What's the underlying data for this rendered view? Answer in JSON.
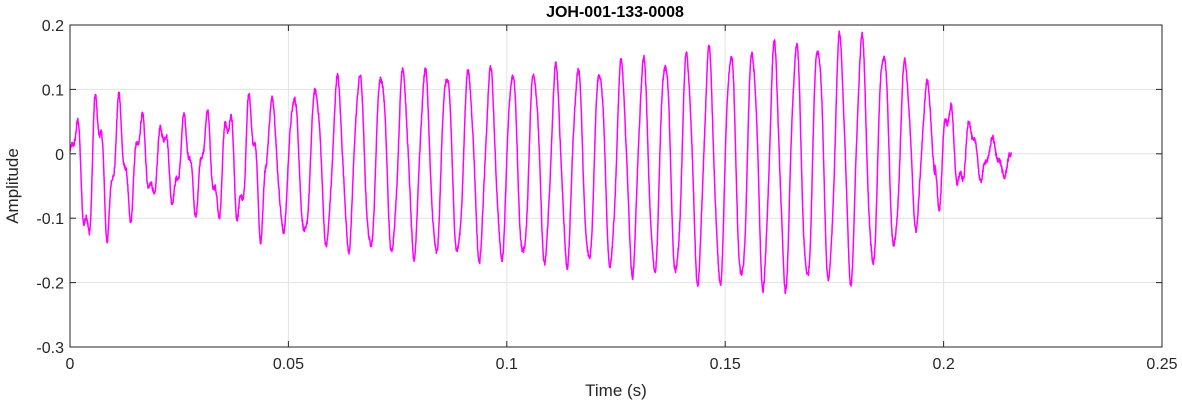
{
  "chart_data": {
    "type": "line",
    "title": "JOH-001-133-0008",
    "xlabel": "Time (s)",
    "ylabel": "Amplitude",
    "xlim": [
      0,
      0.25
    ],
    "ylim": [
      -0.3,
      0.2
    ],
    "grid": true,
    "xticks": [
      0,
      0.05,
      0.1,
      0.15,
      0.2,
      0.25
    ],
    "xtick_labels": [
      "0",
      "0.05",
      "0.1",
      "0.15",
      "0.2",
      "0.25"
    ],
    "yticks": [
      -0.3,
      -0.2,
      -0.1,
      0,
      0.1,
      0.2
    ],
    "ytick_labels": [
      "-0.3",
      "-0.2",
      "-0.1",
      "0",
      "0.1",
      "0.2"
    ],
    "series": [
      {
        "color": "#ff00ff",
        "signal_start_s": 0,
        "signal_end_s": 0.2155,
        "oscillation_frequency_hz": 200,
        "upper_envelope": [
          [
            0,
            0.02
          ],
          [
            0.004,
            0.08
          ],
          [
            0.01,
            0.07
          ],
          [
            0.02,
            0.04
          ],
          [
            0.03,
            0.045
          ],
          [
            0.04,
            0.07
          ],
          [
            0.05,
            0.085
          ],
          [
            0.06,
            0.11
          ],
          [
            0.07,
            0.125
          ],
          [
            0.1,
            0.125
          ],
          [
            0.12,
            0.13
          ],
          [
            0.14,
            0.15
          ],
          [
            0.16,
            0.16
          ],
          [
            0.18,
            0.18
          ],
          [
            0.19,
            0.15
          ],
          [
            0.2,
            0.08
          ],
          [
            0.21,
            0.02
          ],
          [
            0.2155,
            0.01
          ]
        ],
        "lower_envelope": [
          [
            0,
            -0.03
          ],
          [
            0.004,
            -0.14
          ],
          [
            0.01,
            -0.1
          ],
          [
            0.02,
            -0.06
          ],
          [
            0.03,
            -0.08
          ],
          [
            0.04,
            -0.1
          ],
          [
            0.05,
            -0.12
          ],
          [
            0.06,
            -0.14
          ],
          [
            0.07,
            -0.15
          ],
          [
            0.1,
            -0.16
          ],
          [
            0.12,
            -0.17
          ],
          [
            0.14,
            -0.19
          ],
          [
            0.16,
            -0.205
          ],
          [
            0.18,
            -0.19
          ],
          [
            0.19,
            -0.14
          ],
          [
            0.2,
            -0.06
          ],
          [
            0.21,
            -0.03
          ],
          [
            0.2155,
            -0.03
          ]
        ]
      }
    ]
  }
}
